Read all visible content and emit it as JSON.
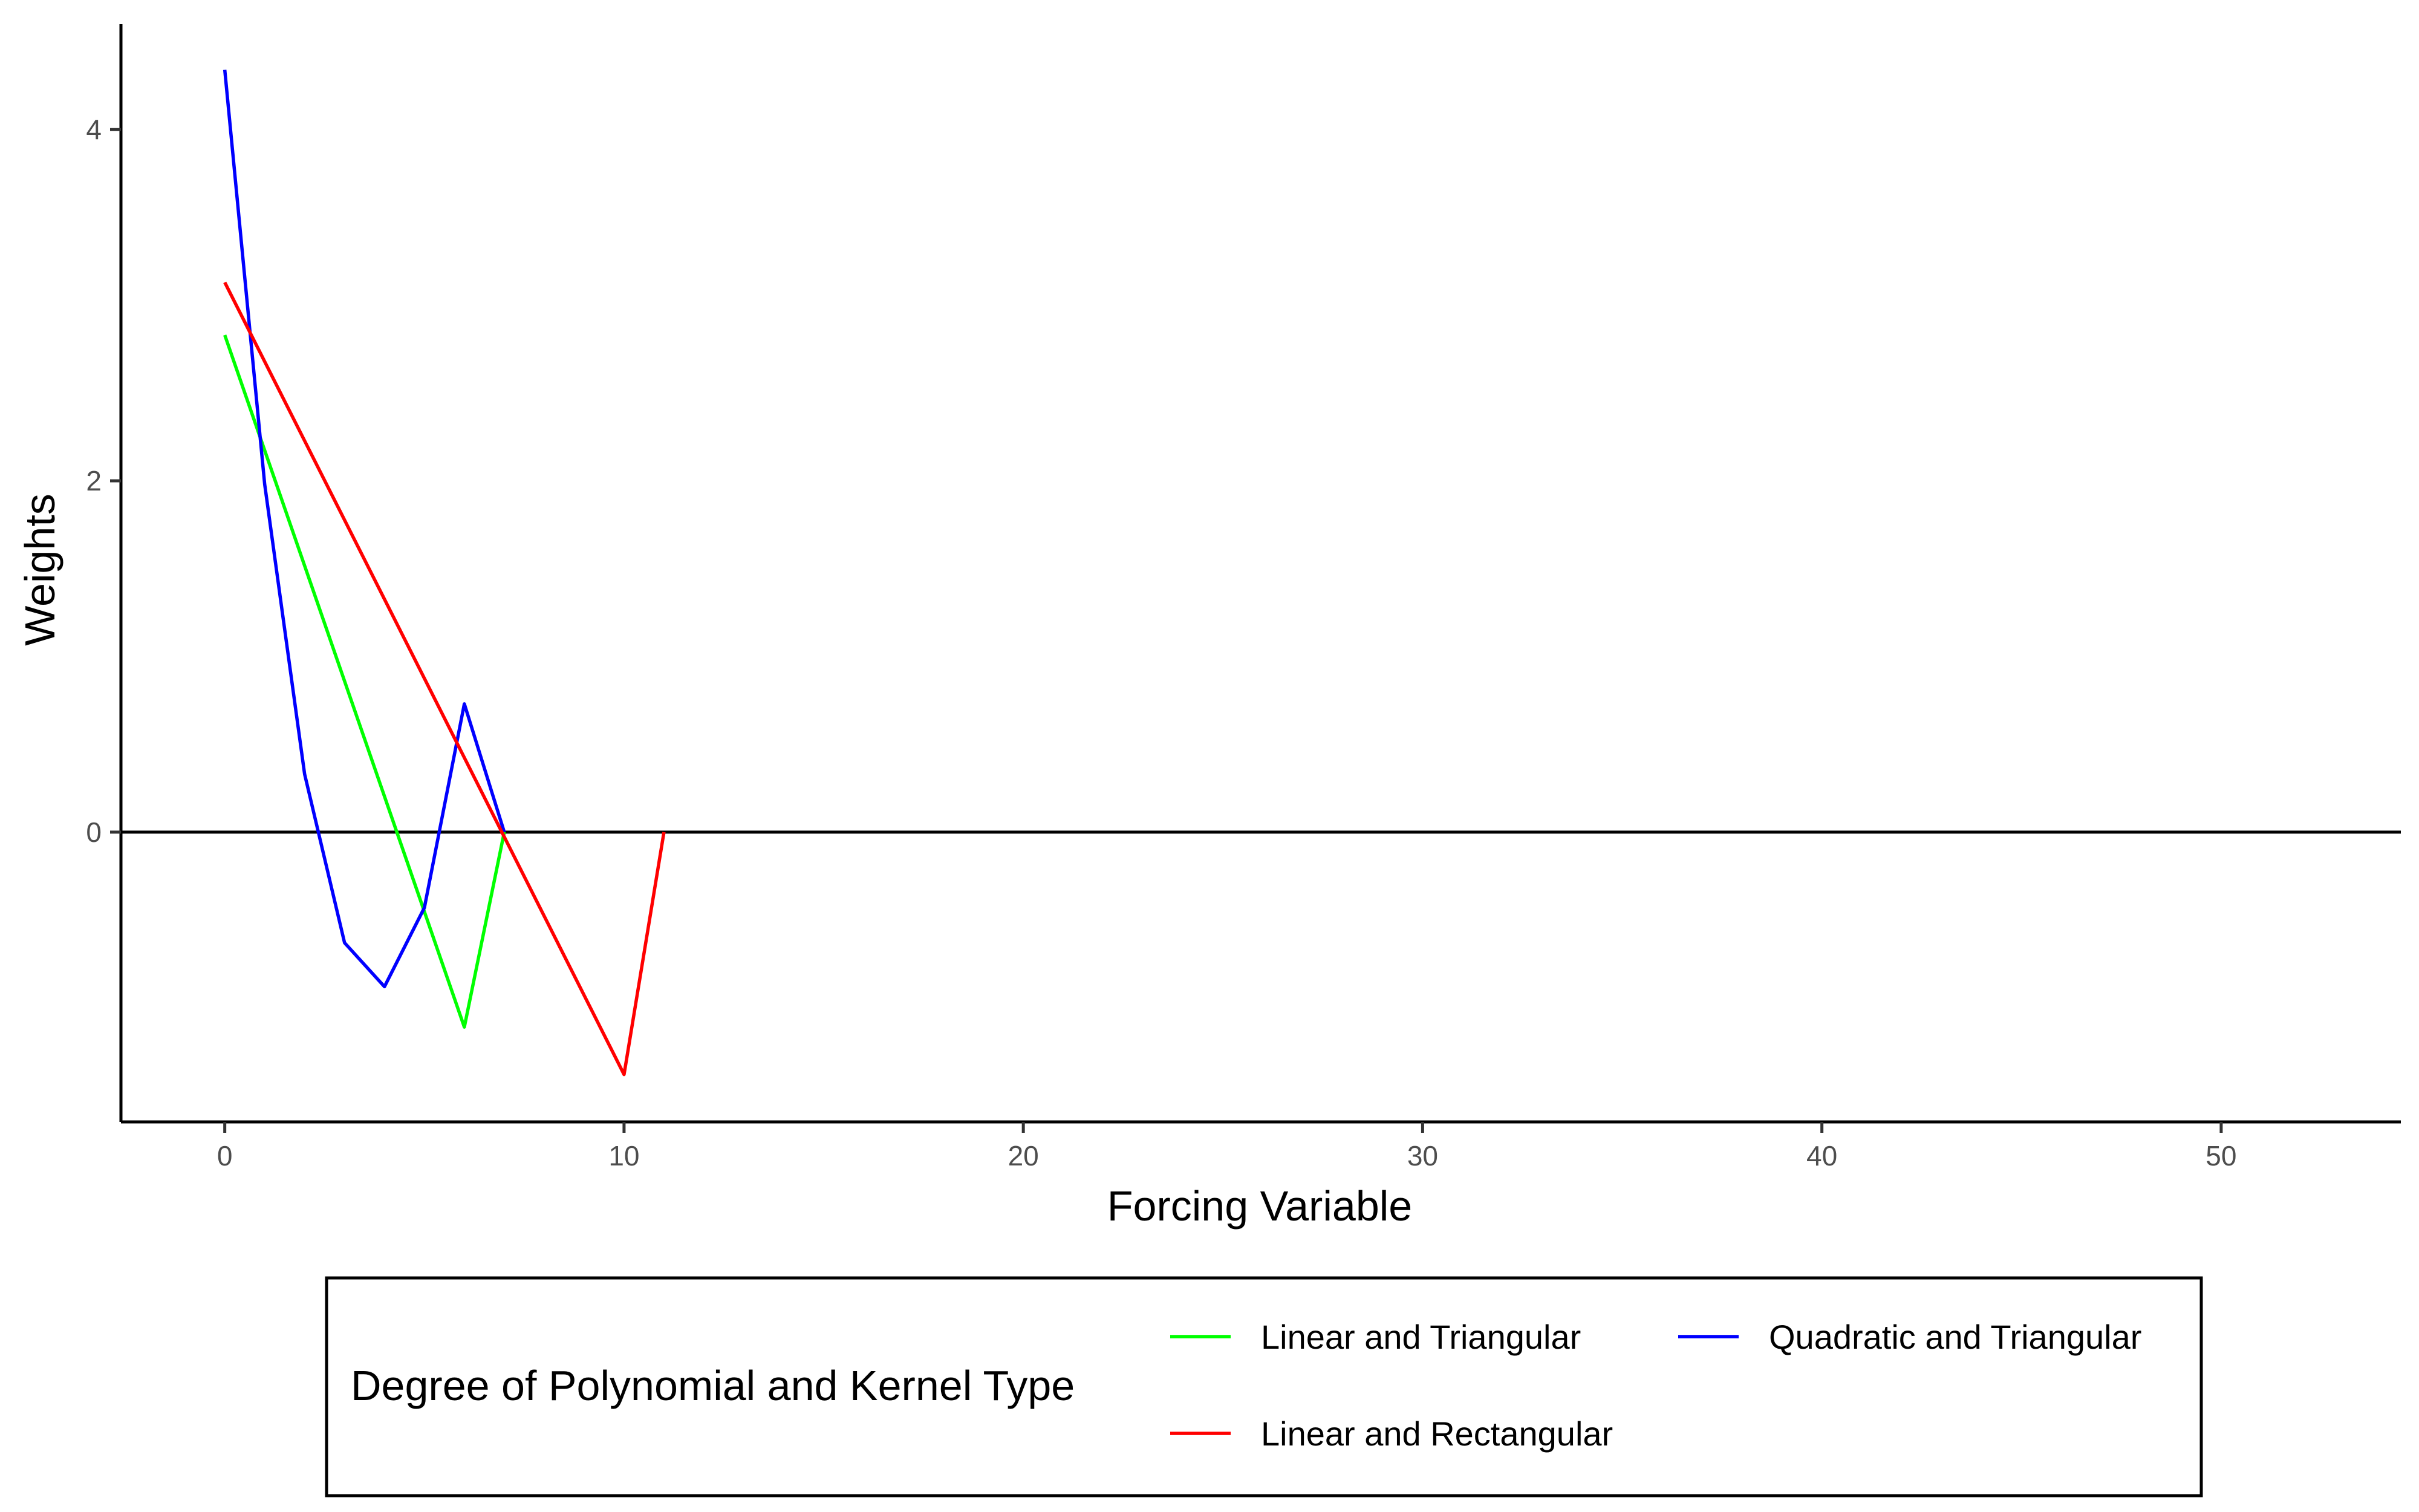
{
  "chart_data": {
    "type": "line",
    "title": "",
    "xlabel": "Forcing Variable",
    "ylabel": "Weights",
    "xlim": [
      -2.6,
      54.5
    ],
    "ylim": [
      -1.65,
      4.6
    ],
    "x_ticks": [
      0,
      10,
      20,
      30,
      40,
      50
    ],
    "y_ticks": [
      0,
      2,
      4
    ],
    "x_tick_labels": [
      "0",
      "10",
      "20",
      "30",
      "40",
      "50"
    ],
    "y_tick_labels": [
      "0",
      "2",
      "4"
    ],
    "reference_line_y": 0,
    "grid": false,
    "legend": {
      "title": "Degree of Polynomial and Kernel Type",
      "position": "bottom"
    },
    "series": [
      {
        "name": "Linear and Triangular",
        "color": "#00ff00",
        "x": [
          0,
          6,
          7
        ],
        "y": [
          2.83,
          -1.11,
          0
        ]
      },
      {
        "name": "Quadratic and Triangular",
        "color": "#0000ff",
        "x": [
          0,
          1,
          2,
          3,
          4,
          5,
          6,
          7
        ],
        "y": [
          4.34,
          1.98,
          0.33,
          -0.63,
          -0.88,
          -0.43,
          0.73,
          0
        ]
      },
      {
        "name": "Linear and Rectangular",
        "color": "#ff0000",
        "x": [
          0,
          10,
          11
        ],
        "y": [
          3.13,
          -1.38,
          0
        ]
      }
    ]
  }
}
